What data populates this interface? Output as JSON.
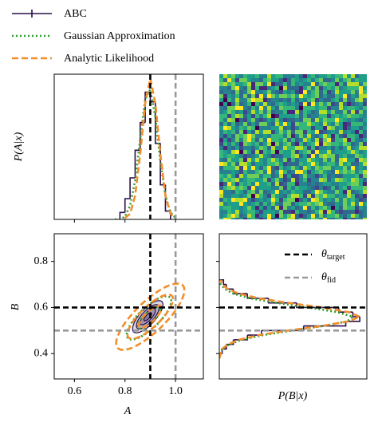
{
  "chart_data": {
    "type": "corner",
    "xlabel": "A",
    "ylabel": "B",
    "top_ylabel": "P(A|x)",
    "right_xlabel": "P(B|x)",
    "xlim": [
      0.52,
      1.11
    ],
    "xticks": [
      0.6,
      0.8,
      {
        "value": 1,
        "label": "1.0"
      }
    ],
    "ylim": [
      0.29,
      0.92
    ],
    "yticks": [
      0.4,
      0.6,
      0.8
    ],
    "density_lim": [
      0,
      1.05
    ],
    "reference_lines": [
      {
        "symbol": "θ",
        "subscript": "target",
        "color": "#000000",
        "A": 0.9,
        "B": 0.6
      },
      {
        "symbol": "θ",
        "subscript": "fid",
        "color": "#999999",
        "A": 1,
        "B": 0.5
      }
    ],
    "series": [
      {
        "name": "ABC",
        "color": "#2b0f4c",
        "linestyle": "solid",
        "hist_A": {
          "bins": [
            0.78,
            0.8,
            0.82,
            0.84,
            0.86,
            0.88,
            0.9,
            0.92,
            0.94,
            0.96,
            0.98
          ],
          "counts": [
            0.05,
            0.15,
            0.3,
            0.5,
            0.7,
            0.92,
            0.85,
            0.55,
            0.25,
            0.06
          ]
        },
        "hist_B": {
          "bins": [
            0.4,
            0.42,
            0.44,
            0.46,
            0.48,
            0.5,
            0.52,
            0.54,
            0.56,
            0.58,
            0.6,
            0.62,
            0.64,
            0.66,
            0.68,
            0.7,
            0.72
          ],
          "counts": [
            0.02,
            0.05,
            0.1,
            0.2,
            0.3,
            0.6,
            0.9,
            1.0,
            0.95,
            0.85,
            0.55,
            0.35,
            0.2,
            0.1,
            0.05,
            0.03
          ]
        },
        "contour": {
          "center": [
            0.89,
            0.56
          ],
          "sigma": [
            0.03,
            0.035
          ],
          "rho": 0.75,
          "levels": [
            0.5,
            1,
            1.5,
            2
          ]
        }
      },
      {
        "name": "Gaussian Approximation",
        "color": "#2ca02c",
        "linestyle": "dotted",
        "curve_A": {
          "x": [
            0.76,
            0.78,
            0.8,
            0.82,
            0.84,
            0.86,
            0.88,
            0.9,
            0.92,
            0.94,
            0.96,
            0.98,
            1.0
          ],
          "values": [
            0,
            0,
            0.02,
            0.1,
            0.28,
            0.58,
            0.87,
            0.94,
            0.74,
            0.42,
            0.17,
            0.05,
            0.01
          ]
        },
        "curve_B": {
          "y": [
            0.38,
            0.4,
            0.42,
            0.44,
            0.46,
            0.48,
            0.5,
            0.52,
            0.54,
            0.56,
            0.58,
            0.6,
            0.62,
            0.64,
            0.66,
            0.68,
            0.7,
            0.72
          ],
          "values": [
            0,
            0.01,
            0.02,
            0.07,
            0.16,
            0.31,
            0.52,
            0.74,
            0.91,
            0.95,
            0.84,
            0.63,
            0.41,
            0.22,
            0.1,
            0.04,
            0.01,
            0
          ]
        },
        "contour": {
          "center": [
            0.895,
            0.555
          ],
          "sigma": [
            0.044,
            0.047
          ],
          "rho": 0.78,
          "levels": [
            1,
            2
          ]
        }
      },
      {
        "name": "Analytic Likelihood",
        "color": "#f28e2b",
        "linestyle": "dashed",
        "curve_A": {
          "x": [
            0.8,
            0.82,
            0.84,
            0.86,
            0.88,
            0.9,
            0.92,
            0.94,
            0.96,
            0.98,
            1.0
          ],
          "values": [
            0.01,
            0.04,
            0.17,
            0.47,
            0.84,
            1.02,
            0.84,
            0.47,
            0.17,
            0.04,
            0.01
          ]
        },
        "curve_B": {
          "y": [
            0.38,
            0.4,
            0.42,
            0.44,
            0.46,
            0.48,
            0.5,
            0.52,
            0.54,
            0.56,
            0.58,
            0.6,
            0.62,
            0.64,
            0.66,
            0.68,
            0.7,
            0.72
          ],
          "values": [
            0,
            0.01,
            0.02,
            0.06,
            0.14,
            0.28,
            0.49,
            0.73,
            0.92,
            1.0,
            0.92,
            0.73,
            0.49,
            0.28,
            0.14,
            0.06,
            0.02,
            0.01
          ]
        },
        "contour": {
          "center": [
            0.9,
            0.56
          ],
          "sigma": [
            0.045,
            0.048
          ],
          "rho": 0.8,
          "levels": [
            1,
            2,
            3
          ]
        }
      }
    ]
  }
}
